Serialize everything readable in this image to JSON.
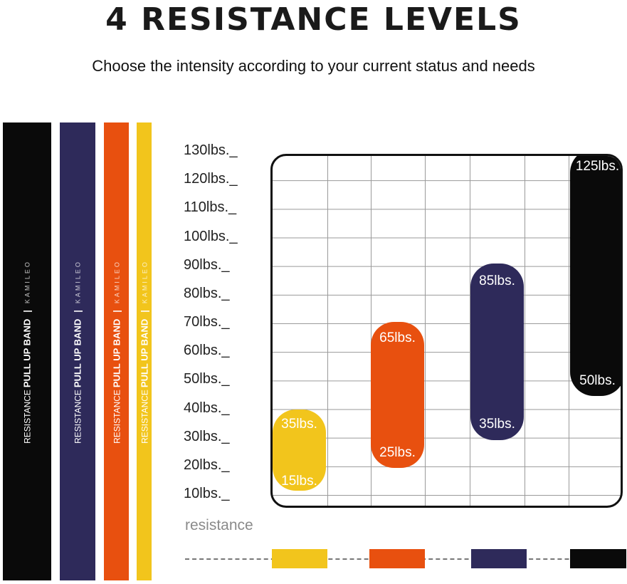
{
  "header": {
    "title": "4 RESISTANCE LEVELS",
    "subtitle": "Choose the intensity according to your current status and needs"
  },
  "bands": [
    {
      "color": "#0a0a0a",
      "label_resistance": "RESISTANCE",
      "label_type": "PULL UP BAND",
      "separator": "|",
      "brand": "KAMILEO"
    },
    {
      "color": "#2e2a5a",
      "label_resistance": "RESISTANCE",
      "label_type": "PULL UP BAND",
      "separator": "|",
      "brand": "KAMILEO"
    },
    {
      "color": "#e8500f",
      "label_resistance": "RESISTANCE",
      "label_type": "PULL UP BAND",
      "separator": "|",
      "brand": "KAMILEO"
    },
    {
      "color": "#f2c51c",
      "label_resistance": "RESISTANCE",
      "label_type": "PULL UP BAND",
      "separator": "|",
      "brand": "KAMILEO"
    }
  ],
  "chart_data": {
    "type": "bar",
    "subtype": "floating-range",
    "y_tick_labels": [
      "130lbs._",
      "120lbs._",
      "110lbs._",
      "100lbs._",
      "90lbs._",
      "80lbs._",
      "70lbs._",
      "60lbs._",
      "50lbs._",
      "40lbs._",
      "30lbs._",
      "20lbs._",
      "10lbs._"
    ],
    "ylim": [
      5,
      130
    ],
    "y_unit": "lbs",
    "grid": true,
    "xlabel": "resistance",
    "series": [
      {
        "low": 15,
        "high": 35,
        "low_label": "15lbs.",
        "high_label": "35lbs.",
        "color": "#f2c51c"
      },
      {
        "low": 25,
        "high": 65,
        "low_label": "25lbs.",
        "high_label": "65lbs.",
        "color": "#e8500f"
      },
      {
        "low": 35,
        "high": 85,
        "low_label": "35lbs.",
        "high_label": "85lbs.",
        "color": "#2e2a5a"
      },
      {
        "low": 50,
        "high": 125,
        "low_label": "50lbs.",
        "high_label": "125lbs.",
        "color": "#0a0a0a"
      }
    ]
  }
}
